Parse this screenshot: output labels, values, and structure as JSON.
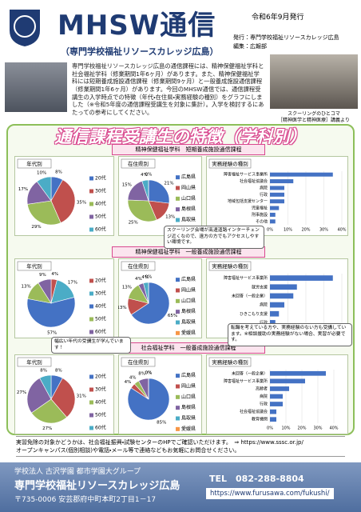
{
  "header": {
    "title": "MHSW通信",
    "subtitle": "（専門学校福祉リソースカレッジ広島）",
    "date": "令和6年9月発行",
    "publisher": "発行：専門学校福祉リソースカレッジ広島",
    "editor": "編集：広報部"
  },
  "intro": "専門学校福祉リソースカレッジ広島の通信課程には、精神保健福祉学科と社会福祉学科（修業期間1年6ヶ月）があります。また、精神保健福祉学科には短期養成施設通信課程（修業期間9ヶ月）と一般養成施設通信課程（修業期間1年6ヶ月）があります。今回のMHSW通信では、通信課程受講生の入学時点での特徴（年代・在住県・実務経験の種別）をグラフにしました（※令和5年度の通信課程受講生を対象に集計）。入学を検討するにあたっての参考にしてください。",
  "photo_caption": [
    "スクーリングのひとコマ",
    "［精神医学と精神医療］講義より"
  ],
  "banner": "通信課程受講生の特徴（学科別）",
  "sections": [
    {
      "heading": "精神保健福祉学科　短期養成施設通信課程",
      "charts": [
        {
          "type": "pie",
          "title": "年代別",
          "categories": [
            "20代",
            "30代",
            "40代",
            "50代",
            "60代"
          ],
          "values": [
            8,
            35,
            29,
            17,
            10
          ],
          "value_labels": [
            "8%",
            "35%",
            "29%",
            "17%",
            "10%"
          ],
          "colors": [
            "#4472c4",
            "#c0504d",
            "#9bbb59",
            "#8064a2",
            "#4bacc6"
          ]
        },
        {
          "type": "pie",
          "title": "在住県別",
          "categories": [
            "広島県",
            "岡山県",
            "山口県",
            "島根県",
            "鳥取県",
            "愛媛県"
          ],
          "values": [
            21,
            13,
            25,
            15,
            4,
            0
          ],
          "value_labels": [
            "21%",
            "13%",
            "25%",
            "15%",
            "4%",
            "0%"
          ],
          "colors": [
            "#4472c4",
            "#c0504d",
            "#9bbb59",
            "#8064a2",
            "#4bacc6",
            "#f79646"
          ]
        },
        {
          "type": "bar",
          "title": "実務経験の種別",
          "categories": [
            "障害福祉サービス事業所",
            "社会福祉協議会",
            "病院",
            "行政",
            "地域包括支援センター",
            "児童福祉",
            "刑事施設",
            "その他"
          ],
          "values": [
            35,
            13,
            8,
            8,
            8,
            5,
            3,
            3
          ],
          "color": "#4472c4",
          "xlim": [
            0,
            40
          ],
          "xticks": [
            {
              "value": 0,
              "label": "0%"
            },
            {
              "value": 10,
              "label": "10%"
            },
            {
              "value": 20,
              "label": "20%"
            },
            {
              "value": 30,
              "label": "30%"
            },
            {
              "value": 40,
              "label": "40%"
            }
          ]
        }
      ]
    },
    {
      "heading": "精神保健福祉学科　一般養成施設通信課程",
      "charts": [
        {
          "type": "pie",
          "title": "年代別",
          "categories": [
            "20代",
            "30代",
            "40代",
            "50代",
            "60代"
          ],
          "values": [
            4,
            17,
            57,
            13,
            9
          ],
          "value_labels": [
            "4%",
            "17%",
            "57%",
            "13%",
            "9%"
          ],
          "colors": [
            "#c0504d",
            "#4bacc6",
            "#4472c4",
            "#9bbb59",
            "#8064a2"
          ]
        },
        {
          "type": "pie",
          "title": "在住県別",
          "categories": [
            "広島県",
            "岡山県",
            "山口県",
            "島根県",
            "鳥取県",
            "愛媛県"
          ],
          "values": [
            65,
            13,
            13,
            4,
            4,
            0
          ],
          "value_labels": [
            "65%",
            "13%",
            "13%",
            "4%",
            "4%",
            "0%"
          ],
          "colors": [
            "#4472c4",
            "#c0504d",
            "#9bbb59",
            "#8064a2",
            "#4bacc6",
            "#f79646"
          ]
        },
        {
          "type": "bar",
          "title": "実務経験の種別",
          "categories": [
            "障害福祉サービス事業所",
            "就労支援",
            "未回答（一般企業）",
            "病院",
            "ひきこもり支援",
            "行政"
          ],
          "values": [
            35,
            15,
            13,
            8,
            5,
            3
          ],
          "color": "#4472c4",
          "xlim": [
            0,
            40
          ],
          "xticks": [
            {
              "value": 0,
              "label": "0%"
            },
            {
              "value": 10,
              "label": "10%"
            },
            {
              "value": 20,
              "label": "20%"
            },
            {
              "value": 30,
              "label": "30%"
            },
            {
              "value": 40,
              "label": "40%"
            }
          ]
        }
      ]
    },
    {
      "heading": "社会福祉学科　一般養成施設通信課程",
      "charts": [
        {
          "type": "pie",
          "title": "年代別",
          "categories": [
            "20代",
            "30代",
            "40代",
            "50代",
            "60代"
          ],
          "values": [
            8,
            31,
            27,
            27,
            8
          ],
          "value_labels": [
            "8%",
            "31%",
            "27%",
            "27%",
            "8%"
          ],
          "colors": [
            "#4472c4",
            "#c0504d",
            "#9bbb59",
            "#8064a2",
            "#4bacc6"
          ]
        },
        {
          "type": "pie",
          "title": "在住県別",
          "categories": [
            "広島県",
            "岡山県",
            "山口県",
            "島根県",
            "鳥取県",
            "愛媛県"
          ],
          "values": [
            85,
            4,
            4,
            8,
            0,
            0
          ],
          "value_labels": [
            "85%",
            "4%",
            "4%",
            "8%",
            "0%",
            "0%"
          ],
          "colors": [
            "#4472c4",
            "#c0504d",
            "#9bbb59",
            "#8064a2",
            "#4bacc6",
            "#f79646"
          ]
        },
        {
          "type": "bar",
          "title": "実務経験の種別",
          "categories": [
            "未回答（一般企業）",
            "障害福祉サービス事業所",
            "高齢者",
            "病院",
            "行政",
            "社会福祉協議会",
            "教育機関"
          ],
          "values": [
            35,
            22,
            12,
            8,
            8,
            4,
            4
          ],
          "color": "#4472c4",
          "xlim": [
            0,
            45
          ],
          "xticks": [
            {
              "value": 0,
              "label": "0%"
            },
            {
              "value": 10,
              "label": "10%"
            },
            {
              "value": 20,
              "label": "20%"
            },
            {
              "value": 30,
              "label": "30%"
            },
            {
              "value": 40,
              "label": "40%"
            }
          ]
        }
      ]
    }
  ],
  "callouts": [
    "スクーリング会場が高速道路インターチェンジ近くなので、遠方の方でもアクセスしやすい環境です。",
    "転職を考えている方や、実務経験のない方も受講しています。※相談援助の実務経験がない場合、実習が必要です。",
    "幅広い年代の受講生が学んでいます！"
  ],
  "notes": [
    "実習免除の対象かどうかは、社会福祉振興・試験センターのHPでご確認いただけます。　⇒ https://www.sssc.or.jp/",
    "オープンキャンパス(個別相談)や電話・メール等で連絡などもお気軽にお問合せください。"
  ],
  "footer": {
    "group": "学校法人 古沢学園 都市学園大グループ",
    "school": "専門学校福祉リソースカレッジ広島",
    "address": "〒735-0006 安芸郡府中町本町2丁目1－17",
    "tel": "TEL　082-288-8804",
    "url": "https://www.furusawa.com/fukushi/"
  }
}
